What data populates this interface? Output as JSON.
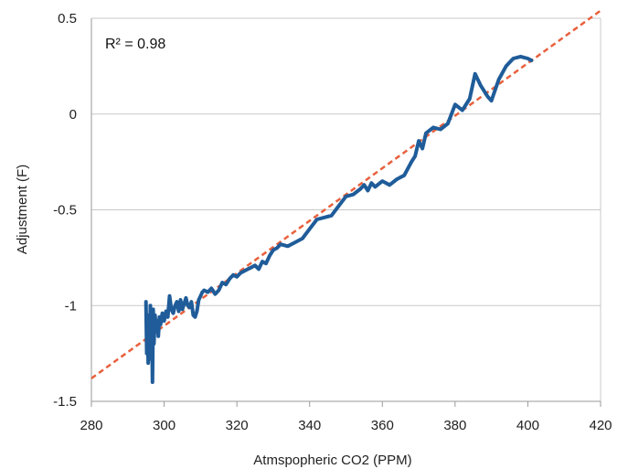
{
  "chart_data": {
    "type": "line",
    "title": "",
    "xlabel": "Atmspopheric CO2 (PPM)",
    "ylabel": "Adjustment (F)",
    "xlim": [
      280,
      420
    ],
    "ylim": [
      -1.5,
      0.5
    ],
    "x_ticks": [
      "280",
      "300",
      "320",
      "340",
      "360",
      "380",
      "400",
      "420"
    ],
    "y_ticks": [
      "0.5",
      "0",
      "-0.5",
      "-1",
      "-1.5"
    ],
    "grid": {
      "horizontal": true,
      "vertical": false
    },
    "annotation": "R² = 0.98",
    "colors": {
      "series": "#1f5c99",
      "trend": "#e8603c",
      "grid": "#c8c8c8",
      "axis": "#9a9a9a"
    },
    "series": [
      {
        "x": [
          295.0,
          295.2,
          295.4,
          295.6,
          295.8,
          296.0,
          296.2,
          296.4,
          296.6,
          296.8,
          297.0,
          297.2,
          297.5,
          297.8,
          298.1,
          298.4,
          298.7,
          299.0,
          299.5,
          300.0,
          300.5,
          301.0,
          301.5,
          302.0,
          302.5,
          303.0,
          303.5,
          304.0,
          304.5,
          305.0,
          305.5,
          306.0,
          306.5,
          307.0,
          307.5,
          308.0,
          308.5,
          309.0,
          309.5,
          310.0,
          310.5,
          311.0,
          312.0,
          313.0,
          314.0,
          315.0,
          316.0,
          317.0,
          318.0,
          319.0,
          320.0,
          321.0,
          322.0,
          323.0,
          324.0,
          325.0,
          326.0,
          327.0,
          328.0,
          329.0,
          330.0,
          331.0,
          332.0,
          334.0,
          336.0,
          338.0,
          340.0,
          342.0,
          344.0,
          346.0,
          348.0,
          350.0,
          352.0,
          354.0,
          355.0,
          356.0,
          357.0,
          358.0,
          360.0,
          362.0,
          364.0,
          366.0,
          368.0,
          369.0,
          370.0,
          371.0,
          372.0,
          374.0,
          376.0,
          378.0,
          380.0,
          382.0,
          384.0,
          385.5,
          387.0,
          389.0,
          390.0,
          392.0,
          394.0,
          396.0,
          398.0,
          400.0,
          401.0
        ],
        "y": [
          -0.98,
          -1.25,
          -1.05,
          -1.3,
          -1.1,
          -1.22,
          -1.0,
          -1.28,
          -1.05,
          -1.4,
          -1.02,
          -1.2,
          -1.05,
          -1.12,
          -1.08,
          -1.16,
          -1.06,
          -1.1,
          -1.04,
          -1.08,
          -1.03,
          -1.06,
          -0.95,
          -1.02,
          -1.04,
          -1.0,
          -0.98,
          -1.03,
          -0.97,
          -1.02,
          -0.99,
          -0.96,
          -1.0,
          -1.01,
          -0.98,
          -1.05,
          -1.06,
          -1.03,
          -0.97,
          -0.95,
          -0.93,
          -0.92,
          -0.93,
          -0.91,
          -0.94,
          -0.92,
          -0.88,
          -0.89,
          -0.86,
          -0.84,
          -0.85,
          -0.83,
          -0.82,
          -0.81,
          -0.8,
          -0.79,
          -0.81,
          -0.77,
          -0.78,
          -0.74,
          -0.71,
          -0.7,
          -0.68,
          -0.69,
          -0.67,
          -0.65,
          -0.6,
          -0.55,
          -0.54,
          -0.53,
          -0.48,
          -0.43,
          -0.42,
          -0.39,
          -0.37,
          -0.4,
          -0.36,
          -0.38,
          -0.35,
          -0.37,
          -0.34,
          -0.32,
          -0.25,
          -0.22,
          -0.14,
          -0.18,
          -0.1,
          -0.07,
          -0.08,
          -0.05,
          0.05,
          0.02,
          0.08,
          0.21,
          0.15,
          0.09,
          0.07,
          0.18,
          0.25,
          0.29,
          0.3,
          0.29,
          0.28
        ]
      }
    ],
    "trendline": {
      "x": [
        280,
        420
      ],
      "y": [
        -1.38,
        0.54
      ],
      "style": "dashed"
    }
  }
}
